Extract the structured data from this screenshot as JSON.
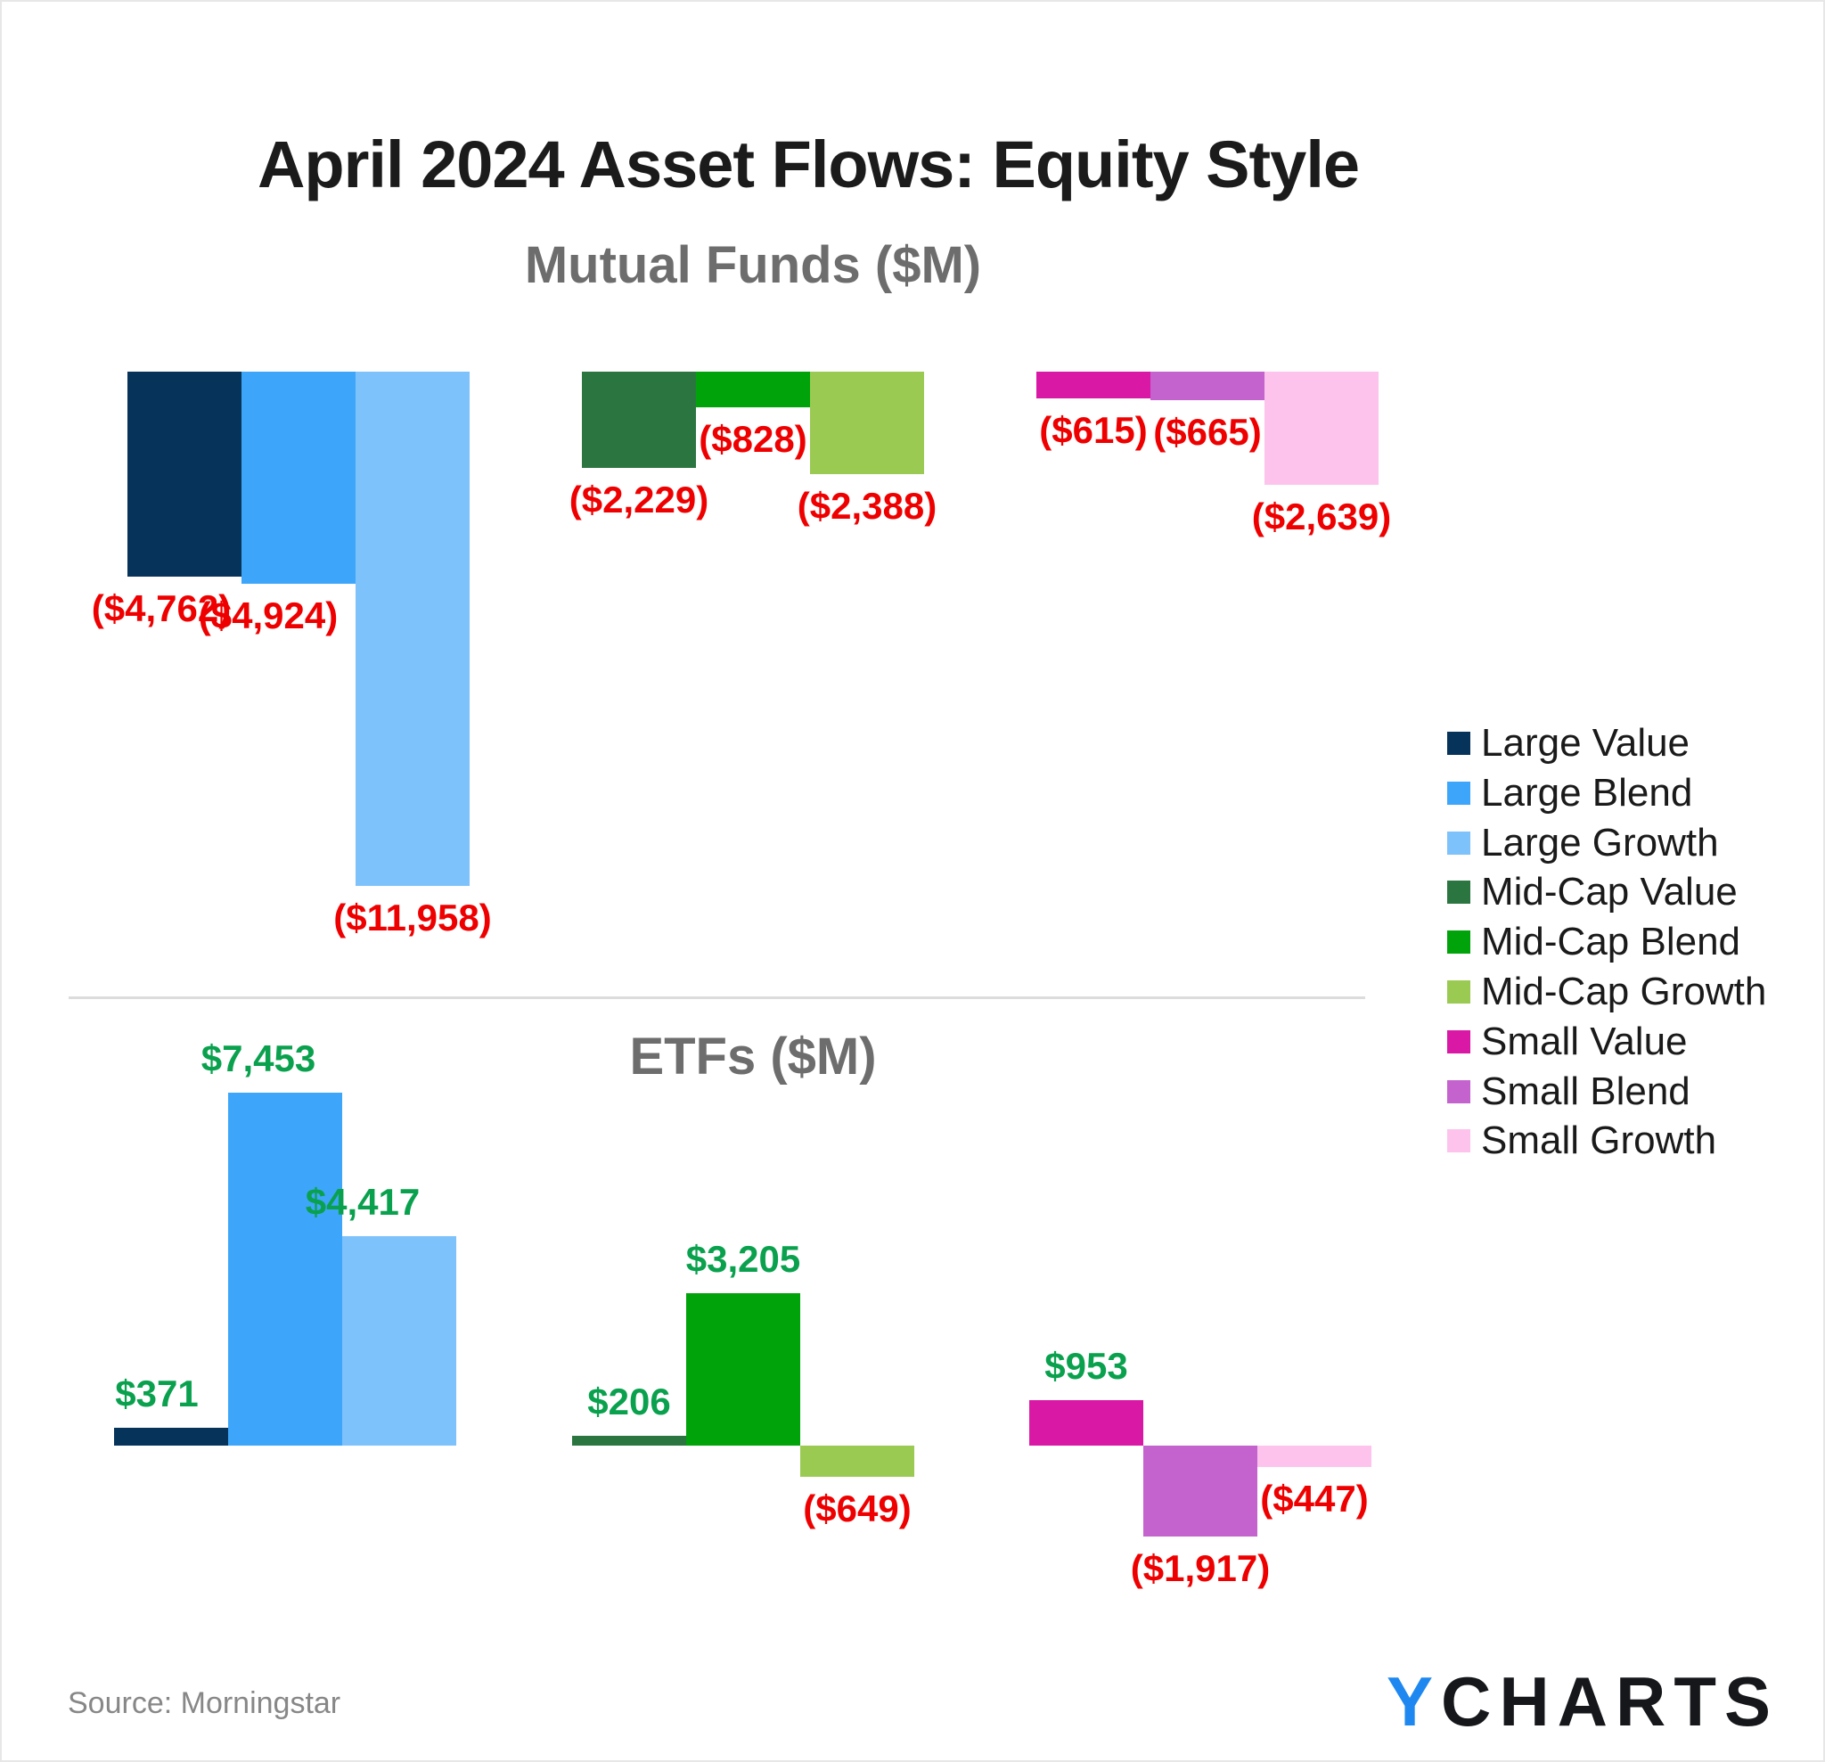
{
  "page": {
    "title": "April 2024 Asset Flows: Equity Style",
    "source": "Source: Morningstar",
    "logo": {
      "y": "Y",
      "charts": "CHARTS"
    }
  },
  "colors": {
    "categories": {
      "Large Value": "#05335a",
      "Large Blend": "#3ea6fa",
      "Large Growth": "#7ec2fb",
      "Mid-Cap Value": "#2b7540",
      "Mid-Cap Blend": "#00a30a",
      "Mid-Cap Growth": "#9aca52",
      "Small Value": "#da18a6",
      "Small Blend": "#c563ce",
      "Small Growth": "#fdc3ec"
    },
    "positive_label": "#0aa14e",
    "negative_label": "#ef0000",
    "title_text": "#1b1b1b",
    "subtitle_text": "#6d6d6d",
    "source_text": "#878787",
    "logo_y": "#1e88f0",
    "logo_charts": "#15171b",
    "divider": "#dcdcdc"
  },
  "legend": {
    "position": "right",
    "items": [
      "Large Value",
      "Large Blend",
      "Large Growth",
      "Mid-Cap Value",
      "Mid-Cap Blend",
      "Mid-Cap Growth",
      "Small Value",
      "Small Blend",
      "Small Growth"
    ]
  },
  "chart_data": [
    {
      "type": "bar",
      "title": "Mutual Funds ($M)",
      "unit": "$M",
      "grid": false,
      "group_size": 3,
      "baseline_value": 0,
      "categories": [
        "Large Value",
        "Large Blend",
        "Large Growth",
        "Mid-Cap Value",
        "Mid-Cap Blend",
        "Mid-Cap Growth",
        "Small Value",
        "Small Blend",
        "Small Growth"
      ],
      "values": [
        -4762,
        -4924,
        -11958,
        -2229,
        -828,
        -2388,
        -615,
        -665,
        -2639
      ],
      "value_labels": [
        "($4,762)",
        "($4,924)",
        "($11,958)",
        "($2,229)",
        "($828)",
        "($2,388)",
        "($615)",
        "($665)",
        "($2,639)"
      ]
    },
    {
      "type": "bar",
      "title": "ETFs ($M)",
      "unit": "$M",
      "grid": false,
      "group_size": 3,
      "baseline_value": 0,
      "categories": [
        "Large Value",
        "Large Blend",
        "Large Growth",
        "Mid-Cap Value",
        "Mid-Cap Blend",
        "Mid-Cap Growth",
        "Small Value",
        "Small Blend",
        "Small Growth"
      ],
      "values": [
        371,
        7453,
        4417,
        206,
        3205,
        -649,
        953,
        -1917,
        -447
      ],
      "value_labels": [
        "$371",
        "$7,453",
        "$4,417",
        "$206",
        "$3,205",
        "($649)",
        "$953",
        "($1,917)",
        "($447)"
      ]
    }
  ]
}
